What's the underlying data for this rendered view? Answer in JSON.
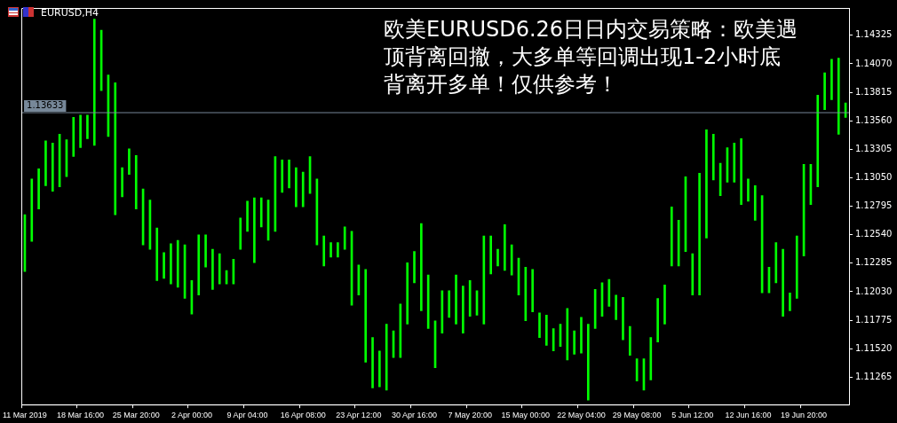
{
  "chart_data": {
    "type": "bar",
    "title": "欧美EURUSD6.26日日内交易策略：欧美遇顶背离回撤，大多单等回调出现1-2小时底背离开多单！仅供参考！",
    "subtitle": "EURUSD,H4",
    "categories": [
      "11 Mar 2019",
      null,
      null,
      null,
      null,
      null,
      null,
      null,
      "18 Mar 16:00",
      null,
      null,
      null,
      null,
      null,
      null,
      null,
      "25 Mar 20:00",
      null,
      null,
      null,
      null,
      null,
      null,
      null,
      "2 Apr 00:00",
      null,
      null,
      null,
      null,
      null,
      null,
      null,
      "9 Apr 04:00",
      null,
      null,
      null,
      null,
      null,
      null,
      null,
      "16 Apr 08:00",
      null,
      null,
      null,
      null,
      null,
      null,
      null,
      "23 Apr 12:00",
      null,
      null,
      null,
      null,
      null,
      null,
      null,
      "30 Apr 16:00",
      null,
      null,
      null,
      null,
      null,
      null,
      null,
      "7 May 20:00",
      null,
      null,
      null,
      null,
      null,
      null,
      null,
      "15 May 00:00",
      null,
      null,
      null,
      null,
      null,
      null,
      null,
      "22 May 04:00",
      null,
      null,
      null,
      null,
      null,
      null,
      null,
      "29 May 08:00",
      null,
      null,
      null,
      null,
      null,
      null,
      null,
      "5 Jun 12:00",
      null,
      null,
      null,
      null,
      null,
      null,
      null,
      "12 Jun 16:00",
      null,
      null,
      null,
      null,
      null,
      null,
      null,
      "19 Jun 20:00",
      null,
      null,
      null,
      null,
      null,
      null
    ],
    "base": [
      1.1221,
      1.1248,
      1.1277,
      1.1298,
      1.1293,
      1.1297,
      1.1306,
      1.1324,
      1.1332,
      1.134,
      1.1334,
      1.1383,
      1.1342,
      1.1272,
      1.1288,
      1.1308,
      1.1277,
      1.1245,
      1.1241,
      1.1213,
      1.1215,
      1.121,
      1.1207,
      1.1197,
      1.1183,
      1.12,
      1.1225,
      1.1205,
      1.121,
      1.121,
      1.121,
      1.1241,
      1.1257,
      1.1229,
      1.1261,
      1.1249,
      1.1257,
      1.1292,
      1.1296,
      1.1279,
      1.1279,
      1.1291,
      1.1245,
      1.1226,
      1.1234,
      1.1234,
      1.1241,
      1.1191,
      1.12,
      1.114,
      1.1117,
      1.1118,
      1.1115,
      1.1144,
      1.1144,
      1.1174,
      1.1211,
      1.1186,
      1.117,
      1.1135,
      1.1166,
      1.118,
      1.1174,
      1.1166,
      1.1181,
      1.1182,
      1.1174,
      1.1219,
      1.1226,
      1.1222,
      1.1218,
      1.12,
      1.1177,
      1.1185,
      1.1162,
      1.1155,
      1.115,
      1.1154,
      1.1142,
      1.1147,
      1.1148,
      1.1106,
      1.117,
      1.1181,
      1.119,
      1.1178,
      1.116,
      1.1146,
      1.1123,
      1.1115,
      1.1124,
      1.1158,
      1.1174,
      1.1226,
      1.1226,
      1.1239,
      1.12,
      1.12,
      1.1251,
      1.1303,
      1.1289,
      1.1301,
      1.1301,
      1.1281,
      1.1284,
      1.1267,
      1.1202,
      1.1202,
      1.1211,
      1.1181,
      1.1186,
      1.1197,
      1.1235,
      1.1281,
      1.1297,
      1.1366,
      1.1375,
      1.1344,
      1.1359
    ],
    "values": [
      0.0051,
      0.0056,
      0.0036,
      0.004,
      0.0043,
      0.0047,
      0.0033,
      0.0035,
      0.0029,
      0.0021,
      0.0113,
      0.0054,
      0.0055,
      0.0118,
      0.0026,
      0.0023,
      0.0048,
      0.005,
      0.0044,
      0.0047,
      0.0023,
      0.0036,
      0.0042,
      0.0048,
      0.003,
      0.0054,
      0.0029,
      0.0036,
      0.0027,
      0.0012,
      0.0022,
      0.0028,
      0.0027,
      0.0058,
      0.0026,
      0.0036,
      0.0067,
      0.0029,
      0.0025,
      0.0035,
      0.0031,
      0.0033,
      0.0059,
      0.0027,
      0.0013,
      0.0013,
      0.002,
      0.0066,
      0.0027,
      0.0083,
      0.0045,
      0.0032,
      0.0059,
      0.0024,
      0.0048,
      0.0055,
      0.0028,
      0.0078,
      0.0048,
      0.0042,
      0.0038,
      0.0024,
      0.0044,
      0.0042,
      0.0032,
      0.0022,
      0.0079,
      0.0034,
      0.0015,
      0.0041,
      0.0027,
      0.0033,
      0.0048,
      0.0038,
      0.0022,
      0.0027,
      0.002,
      0.002,
      0.0046,
      0.0021,
      0.0032,
      0.0068,
      0.0035,
      0.003,
      0.0024,
      0.0022,
      0.0038,
      0.0026,
      0.002,
      0.0028,
      0.0038,
      0.0039,
      0.0035,
      0.0053,
      0.0041,
      0.0067,
      0.0037,
      0.0109,
      0.0097,
      0.0041,
      0.0029,
      0.0031,
      0.0035,
      0.0059,
      0.002,
      0.0031,
      0.0087,
      0.0023,
      0.0036,
      0.006,
      0.0016,
      0.0056,
      0.0082,
      0.0036,
      0.0082,
      0.0033,
      0.0036,
      0.0068,
      0.0013
    ],
    "color": "#00ff00",
    "ylim": [
      1.1102,
      1.1457
    ],
    "yticks": [
      1.11265,
      {
        "value": 1.1152,
        "label": "1.11520"
      },
      1.11775,
      {
        "value": 1.1203,
        "label": "1.12030"
      },
      1.12285,
      {
        "value": 1.1254,
        "label": "1.12540"
      },
      1.12795,
      {
        "value": 1.1305,
        "label": "1.13050"
      },
      1.13305,
      {
        "value": 1.1356,
        "label": "1.13560"
      },
      1.13815,
      {
        "value": 1.1407,
        "label": "1.14070"
      },
      1.14325
    ],
    "ref_lines": [
      {
        "axis": "y",
        "value": 1.13633,
        "label": "1.13633",
        "color": "#778899"
      }
    ]
  }
}
